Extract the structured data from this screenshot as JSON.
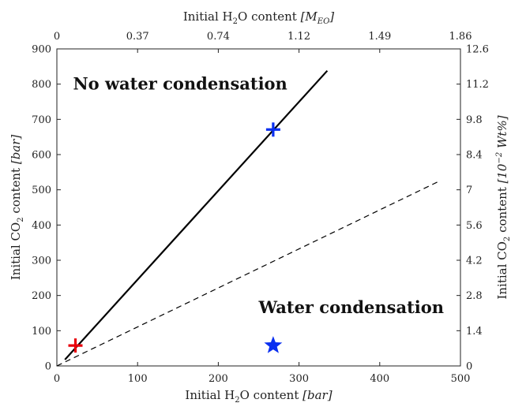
{
  "chart_data": {
    "type": "line",
    "axes": {
      "bottom": {
        "label_parts": [
          "Initial H",
          "2",
          "O content ",
          "[bar]"
        ],
        "range": [
          0,
          500
        ],
        "ticks": [
          "0",
          "100",
          "200",
          "300",
          "400",
          "500"
        ]
      },
      "top": {
        "label_parts": [
          "Initial H",
          "2",
          "O content ",
          "[M",
          "EO",
          "]"
        ],
        "range": [
          0,
          1.86
        ],
        "ticks": [
          "0",
          "0.37",
          "0.74",
          "1.12",
          "1.49",
          "1.86"
        ]
      },
      "left": {
        "label_parts": [
          "Initial CO",
          "2",
          " content ",
          "[bar]"
        ],
        "range": [
          0,
          900
        ],
        "ticks": [
          "0",
          "100",
          "200",
          "300",
          "400",
          "500",
          "600",
          "700",
          "800",
          "900"
        ]
      },
      "right": {
        "label_parts": [
          "Initial CO",
          "2",
          " content ",
          "[10",
          "−2",
          " Wt%]"
        ],
        "range": [
          0,
          12.6
        ],
        "ticks": [
          "0",
          "1.4",
          "2.8",
          "4.2",
          "5.6",
          "7",
          "8.4",
          "9.8",
          "11.2",
          "12.6"
        ]
      }
    },
    "series": [
      {
        "style": "solid",
        "color": "#000000",
        "x": [
          10,
          335
        ],
        "y": [
          18,
          838
        ]
      },
      {
        "style": "dashed",
        "color": "#000000",
        "x": [
          0,
          475
        ],
        "y": [
          0,
          526
        ]
      }
    ],
    "markers": [
      {
        "shape": "plus",
        "color": "#e8000b",
        "x": 23,
        "y": 58
      },
      {
        "shape": "plus",
        "color": "#0a2ff0",
        "x": 268,
        "y": 671
      },
      {
        "shape": "star",
        "color": "#0a2ff0",
        "x": 268,
        "y": 58
      }
    ],
    "annotations": [
      {
        "text": "No water condensation",
        "x": 20,
        "y": 785
      },
      {
        "text": "Water condensation",
        "x": 250,
        "y": 150
      }
    ],
    "grid": false
  }
}
